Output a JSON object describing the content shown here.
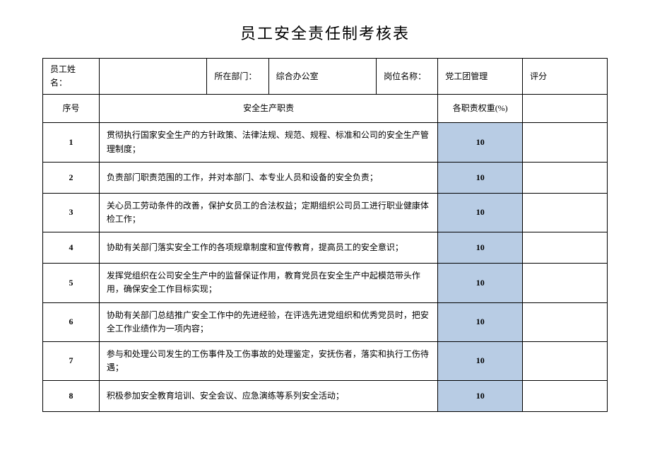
{
  "title": "员工安全责任制考核表",
  "header": {
    "name_label": "员工姓名：",
    "name_value": "",
    "dept_label": "所在部门：",
    "dept_value": "综合办公室",
    "position_label": "岗位名称：",
    "position_value": "党工团管理",
    "score_label": "评分"
  },
  "columns": {
    "index": "序号",
    "duty": "安全生产职责",
    "weight": "各职责权重(%)",
    "score": ""
  },
  "rows": [
    {
      "n": "1",
      "desc": "贯彻执行国家安全生产的方针政策、法律法规、规范、规程、标准和公司的安全生产管理制度；",
      "weight": "10"
    },
    {
      "n": "2",
      "desc": "负责部门职责范围的工作，并对本部门、本专业人员和设备的安全负责；",
      "weight": "10"
    },
    {
      "n": "3",
      "desc": "关心员工劳动条件的改善，保护女员工的合法权益；定期组织公司员工进行职业健康体检工作；",
      "weight": "10"
    },
    {
      "n": "4",
      "desc": "协助有关部门落实安全工作的各项规章制度和宣传教育，提高员工的安全意识；",
      "weight": "10"
    },
    {
      "n": "5",
      "desc": "发挥党组织在公司安全生产中的监督保证作用，教育党员在安全生产中起模范带头作用，确保安全工作目标实现；",
      "weight": "10"
    },
    {
      "n": "6",
      "desc": "协助有关部门总结推广安全工作中的先进经验，在评选先进党组织和优秀党员时，把安全工作业绩作为一项内容；",
      "weight": "10"
    },
    {
      "n": "7",
      "desc": "参与和处理公司发生的工伤事件及工伤事故的处理鉴定，安抚伤者，落实和执行工伤待遇；",
      "weight": "10"
    },
    {
      "n": "8",
      "desc": "积极参加安全教育培训、安全会议、应急演练等系列安全活动；",
      "weight": "10"
    }
  ],
  "styles": {
    "weight_bg": "#b8cce4",
    "border_color": "#000000",
    "title_fontsize": 22,
    "body_fontsize": 12
  }
}
